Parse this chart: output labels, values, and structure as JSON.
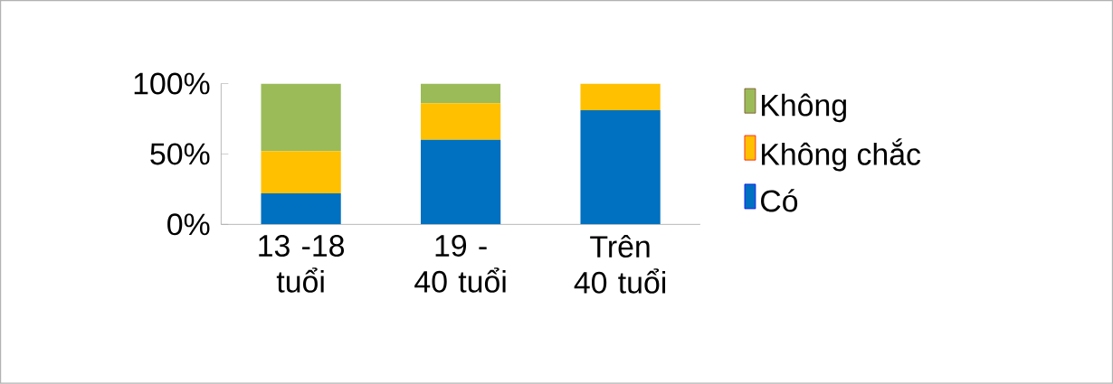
{
  "chart_data": {
    "type": "bar",
    "stacked": true,
    "categories": [
      "13 -18 tuổi",
      "19 - 40 tuổi",
      "Trên 40 tuổi"
    ],
    "series": [
      {
        "name": "Có",
        "color": "#0070c0",
        "values": [
          22,
          60,
          81
        ]
      },
      {
        "name": "Không chắc",
        "color": "#ffc000",
        "values": [
          30,
          26,
          19
        ]
      },
      {
        "name": "Không",
        "color": "#9bbb59",
        "values": [
          48,
          14,
          0
        ]
      }
    ],
    "ylim": [
      0,
      100
    ],
    "yticks": [
      {
        "value": 0,
        "label": "0%"
      },
      {
        "value": 50,
        "label": "50%"
      },
      {
        "value": 100,
        "label": "100%"
      }
    ],
    "legend": "right"
  }
}
